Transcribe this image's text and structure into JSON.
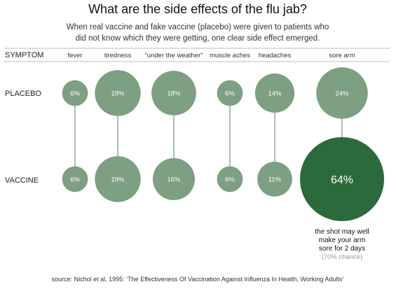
{
  "chart_data": {
    "type": "bubble",
    "title": "What are the side effects of the flu jab?",
    "subtitle_lines": [
      "When real vaccine and fake vaccine (placebo) were given to patients who",
      "did not know which they were getting, one clear side effect emerged."
    ],
    "header_label": "SYMPTOM",
    "categories": [
      "fever",
      "tiredness",
      "“under the weather”",
      "muscle aches",
      "headaches",
      "sore arm"
    ],
    "series": [
      {
        "name": "PLACEBO",
        "values": [
          6,
          19,
          18,
          6,
          14,
          24
        ],
        "labels": [
          "6%",
          "19%",
          "18%",
          "6%",
          "14%",
          "24%"
        ]
      },
      {
        "name": "VACCINE",
        "values": [
          6,
          19,
          16,
          6,
          11,
          64
        ],
        "labels": [
          "6%",
          "19%",
          "16%",
          "6%",
          "11%",
          "64%"
        ]
      }
    ],
    "highlight": {
      "series": "VACCINE",
      "category": "sore arm"
    },
    "annotation_lines": [
      "the shot may well",
      "make your arm",
      "sore for 2 days"
    ],
    "annotation_note": "(70% chance)",
    "source": "source: Nichol et al, 1995: ‘The Effectiveness Of Vaccination Against Influenza In Health, Working Adults’",
    "colors": {
      "bubble": "#7d9f82",
      "highlight": "#2b6b3b",
      "line": "#7d9f82",
      "rule": "#bbbbbb",
      "label_on_bubble": "#ffffff",
      "note": "#999999"
    }
  }
}
